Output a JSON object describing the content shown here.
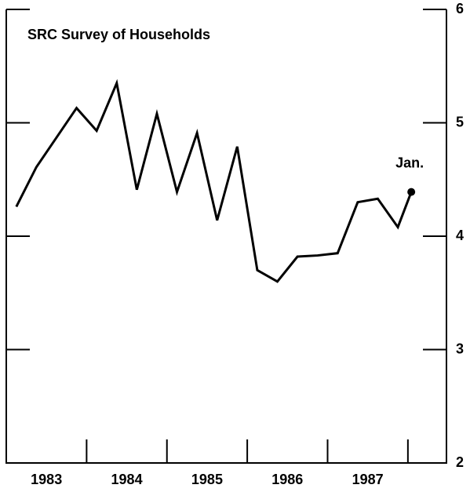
{
  "chart_data": {
    "type": "line",
    "title": "SRC Survey of Households",
    "annotation": "Jan.",
    "categories": [
      "1983",
      "1984",
      "1985",
      "1986",
      "1987"
    ],
    "x": [
      1983.125,
      1983.375,
      1983.625,
      1983.875,
      1984.125,
      1984.375,
      1984.625,
      1984.875,
      1985.125,
      1985.375,
      1985.625,
      1985.875,
      1986.125,
      1986.375,
      1986.625,
      1986.875,
      1987.125,
      1987.375,
      1987.625,
      1987.875,
      1988.042
    ],
    "values": [
      4.26,
      4.61,
      4.87,
      5.13,
      4.93,
      5.35,
      4.41,
      5.08,
      4.39,
      4.91,
      4.14,
      4.79,
      3.7,
      3.6,
      3.82,
      3.83,
      3.85,
      4.3,
      4.33,
      4.08,
      4.39
    ],
    "color": "#000000",
    "xlim": [
      1983,
      1988.48
    ],
    "xticks": [
      1984,
      1985,
      1986,
      1987,
      1988
    ],
    "ylim": [
      2,
      6
    ],
    "yticks": [
      2,
      3,
      4,
      5,
      6
    ]
  }
}
